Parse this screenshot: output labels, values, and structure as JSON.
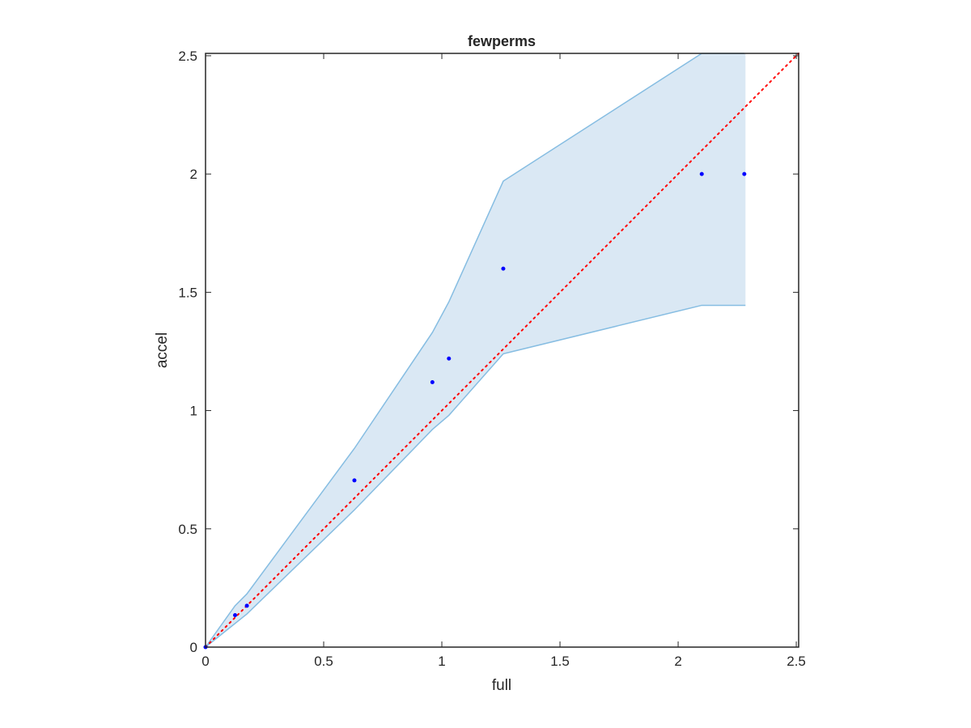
{
  "chart_data": {
    "type": "scatter",
    "title": "fewperms",
    "xlabel": "full",
    "ylabel": "accel",
    "xlim": [
      0,
      2.51
    ],
    "ylim": [
      0,
      2.51
    ],
    "xticks": [
      0,
      0.5,
      1,
      1.5,
      2,
      2.5
    ],
    "yticks": [
      0,
      0.5,
      1,
      1.5,
      2,
      2.5
    ],
    "xtick_labels": [
      "0",
      "0.5",
      "1",
      "1.5",
      "2",
      "2.5"
    ],
    "ytick_labels": [
      "0",
      "0.5",
      "1",
      "1.5",
      "2",
      "2.5"
    ],
    "grid": false,
    "series": [
      {
        "kind": "points",
        "color": "#0000ff",
        "points": [
          {
            "x": 0.0,
            "y": 0.0
          },
          {
            "x": 0.125,
            "y": 0.135
          },
          {
            "x": 0.175,
            "y": 0.175
          },
          {
            "x": 0.63,
            "y": 0.705
          },
          {
            "x": 0.96,
            "y": 1.12
          },
          {
            "x": 1.03,
            "y": 1.22
          },
          {
            "x": 1.26,
            "y": 1.6
          },
          {
            "x": 2.1,
            "y": 2.0
          },
          {
            "x": 2.28,
            "y": 2.0
          }
        ]
      },
      {
        "kind": "band",
        "fill": "#dae8f4",
        "stroke": "#86bde2",
        "x": [
          0.0,
          0.125,
          0.175,
          0.63,
          0.96,
          1.03,
          1.26,
          2.1,
          2.28
        ],
        "upper": [
          0.0,
          0.175,
          0.225,
          0.84,
          1.33,
          1.46,
          1.97,
          2.51,
          2.51
        ],
        "lower": [
          0.0,
          0.1,
          0.14,
          0.58,
          0.92,
          0.98,
          1.24,
          1.445,
          1.445
        ],
        "right_edge_x": 2.285
      },
      {
        "kind": "reference-line",
        "color": "#ff0000",
        "style": "dotted",
        "x": [
          0,
          2.51
        ],
        "y": [
          0,
          2.51
        ]
      }
    ]
  }
}
